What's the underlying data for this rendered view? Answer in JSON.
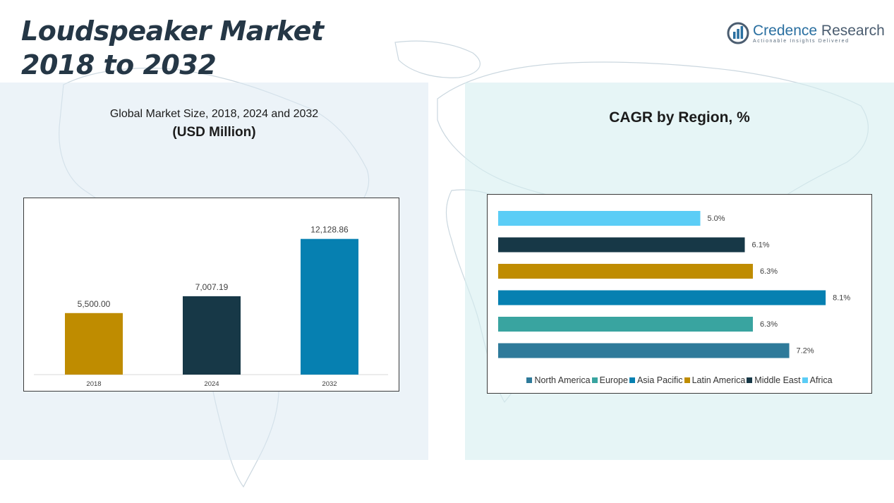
{
  "header": {
    "title_line1": "Loudspeaker Market",
    "title_line2": "2018 to 2032",
    "logo_name_part1": "Credence",
    "logo_name_part2": "Research",
    "logo_tagline": "Actionable Insights Delivered"
  },
  "left_panel": {
    "subtitle": "Global Market Size, 2018, 2024 and 2032",
    "unit": "(USD Million)"
  },
  "right_panel": {
    "title": "CAGR by Region, %"
  },
  "colors": {
    "title": "#253746",
    "bar_2018": "#bf8c00",
    "bar_2024": "#173847",
    "bar_2032": "#0680b1",
    "north_america": "#2e7a9a",
    "europe": "#39a4a0",
    "asia_pacific": "#0680b1",
    "latin_america": "#bf8c00",
    "middle_east": "#173847",
    "africa": "#5bcdf6"
  },
  "chart_data": [
    {
      "type": "bar",
      "categories": [
        "2018",
        "2024",
        "2032"
      ],
      "values": [
        5500.0,
        7007.19,
        12128.86
      ],
      "value_labels": [
        "5,500.00",
        "7,007.19",
        "12,128.86"
      ],
      "colors": [
        "#bf8c00",
        "#173847",
        "#0680b1"
      ],
      "title": "Global Market Size, 2018, 2024 and 2032",
      "ylabel": "(USD Million)",
      "ylim": [
        0,
        14000
      ],
      "grid": false
    },
    {
      "type": "bar",
      "orientation": "horizontal",
      "title": "CAGR by Region, %",
      "categories": [
        "Africa",
        "Middle East",
        "Latin America",
        "Asia Pacific",
        "Europe",
        "North America"
      ],
      "values": [
        5.0,
        6.1,
        6.3,
        8.1,
        6.3,
        7.2
      ],
      "value_labels": [
        "5.0%",
        "6.1%",
        "6.3%",
        "8.1%",
        "6.3%",
        "7.2%"
      ],
      "colors": [
        "#5bcdf6",
        "#173847",
        "#bf8c00",
        "#0680b1",
        "#39a4a0",
        "#2e7a9a"
      ],
      "xlim": [
        0,
        8.6
      ],
      "legend": [
        "North America",
        "Europe",
        "Asia Pacific",
        "Latin America",
        "Middle East",
        "Africa"
      ],
      "legend_colors": [
        "#2e7a9a",
        "#39a4a0",
        "#0680b1",
        "#bf8c00",
        "#173847",
        "#5bcdf6"
      ],
      "legend_position": "bottom",
      "grid": false
    }
  ]
}
